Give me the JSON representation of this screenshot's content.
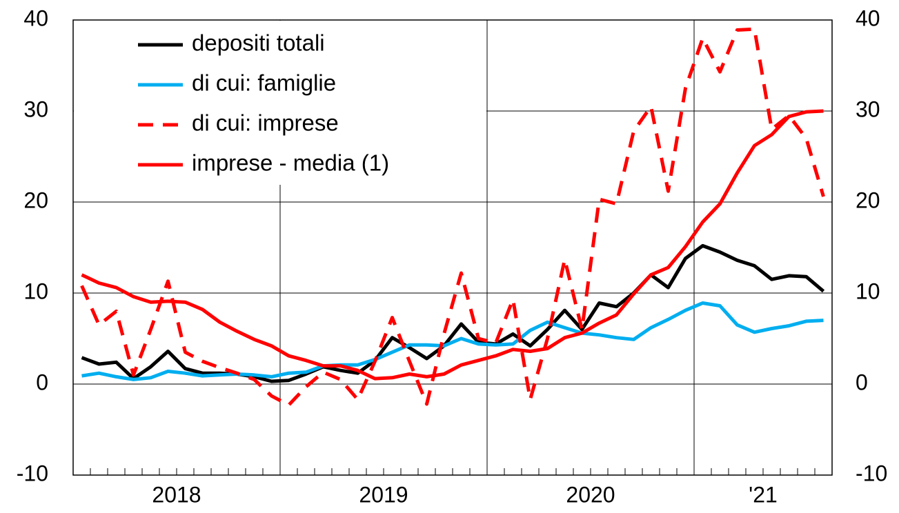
{
  "chart_data": {
    "type": "line",
    "categories": [
      "2018",
      null,
      null,
      null,
      null,
      null,
      null,
      null,
      null,
      null,
      null,
      null,
      "2019",
      null,
      null,
      null,
      null,
      null,
      null,
      null,
      null,
      null,
      null,
      null,
      "2020",
      null,
      null,
      null,
      null,
      null,
      null,
      null,
      null,
      null,
      null,
      null,
      "'21",
      null,
      null,
      null,
      null,
      null,
      null,
      null
    ],
    "series": [
      {
        "name": "depositi totali",
        "color": "#000000",
        "dashed": false,
        "values": [
          2.9,
          2.2,
          2.4,
          0.6,
          1.9,
          3.6,
          1.7,
          1.2,
          1.2,
          1.1,
          0.8,
          0.3,
          0.4,
          1.1,
          1.9,
          1.5,
          1.2,
          2.6,
          5.1,
          4.0,
          2.8,
          4.2,
          6.6,
          4.6,
          4.4,
          5.5,
          4.2,
          6.0,
          8.1,
          6.0,
          8.9,
          8.5,
          10.0,
          12.0,
          10.6,
          13.8,
          15.2,
          14.5,
          13.6,
          13.0,
          11.5,
          11.9,
          11.8,
          10.2
        ]
      },
      {
        "name": "di cui: famiglie",
        "color": "#00aeef",
        "dashed": false,
        "values": [
          0.9,
          1.2,
          0.8,
          0.5,
          0.7,
          1.4,
          1.2,
          0.9,
          1.0,
          1.1,
          1.0,
          0.8,
          1.2,
          1.3,
          2.0,
          2.1,
          2.1,
          2.7,
          3.5,
          4.3,
          4.3,
          4.2,
          5.0,
          4.4,
          4.3,
          4.4,
          5.9,
          6.8,
          6.2,
          5.6,
          5.4,
          5.1,
          4.9,
          6.2,
          7.1,
          8.1,
          8.9,
          8.6,
          6.5,
          5.7,
          6.1,
          6.4,
          6.9,
          7.0
        ]
      },
      {
        "name": "di cui: imprese",
        "color": "#ff0000",
        "dashed": true,
        "values": [
          10.8,
          6.5,
          8.0,
          1.0,
          6.0,
          11.3,
          3.5,
          2.5,
          1.8,
          1.2,
          0.5,
          -1.3,
          -2.3,
          -0.3,
          1.3,
          0.5,
          -1.7,
          2.5,
          7.3,
          2.5,
          -2.2,
          5.5,
          12.2,
          5.0,
          4.5,
          9.3,
          -1.7,
          5.0,
          13.7,
          6.0,
          20.3,
          19.8,
          27.8,
          30.5,
          21.2,
          32.5,
          38.0,
          34.3,
          38.9,
          39.0,
          28.0,
          29.5,
          27.0,
          20.6
        ]
      },
      {
        "name": "imprese - media (1)",
        "color": "#ff0000",
        "dashed": false,
        "values": [
          12.0,
          11.1,
          10.6,
          9.6,
          9.0,
          9.1,
          9.0,
          8.2,
          6.8,
          5.8,
          4.9,
          4.2,
          3.1,
          2.6,
          2.0,
          2.0,
          1.5,
          0.6,
          0.7,
          1.1,
          0.8,
          1.1,
          2.1,
          2.6,
          3.1,
          3.8,
          3.6,
          3.9,
          5.1,
          5.6,
          6.7,
          7.6,
          9.9,
          12.0,
          12.8,
          15.1,
          17.8,
          19.8,
          23.2,
          26.2,
          27.4,
          29.4,
          29.9,
          30.0
        ]
      }
    ],
    "ylim": [
      -10,
      40
    ],
    "yticks": [
      -10,
      0,
      10,
      20,
      30,
      40
    ],
    "y2lim": [
      -10,
      40
    ],
    "y2ticks": [
      -10,
      0,
      10,
      20,
      30,
      40
    ],
    "grid": true,
    "legend": "upper left"
  }
}
